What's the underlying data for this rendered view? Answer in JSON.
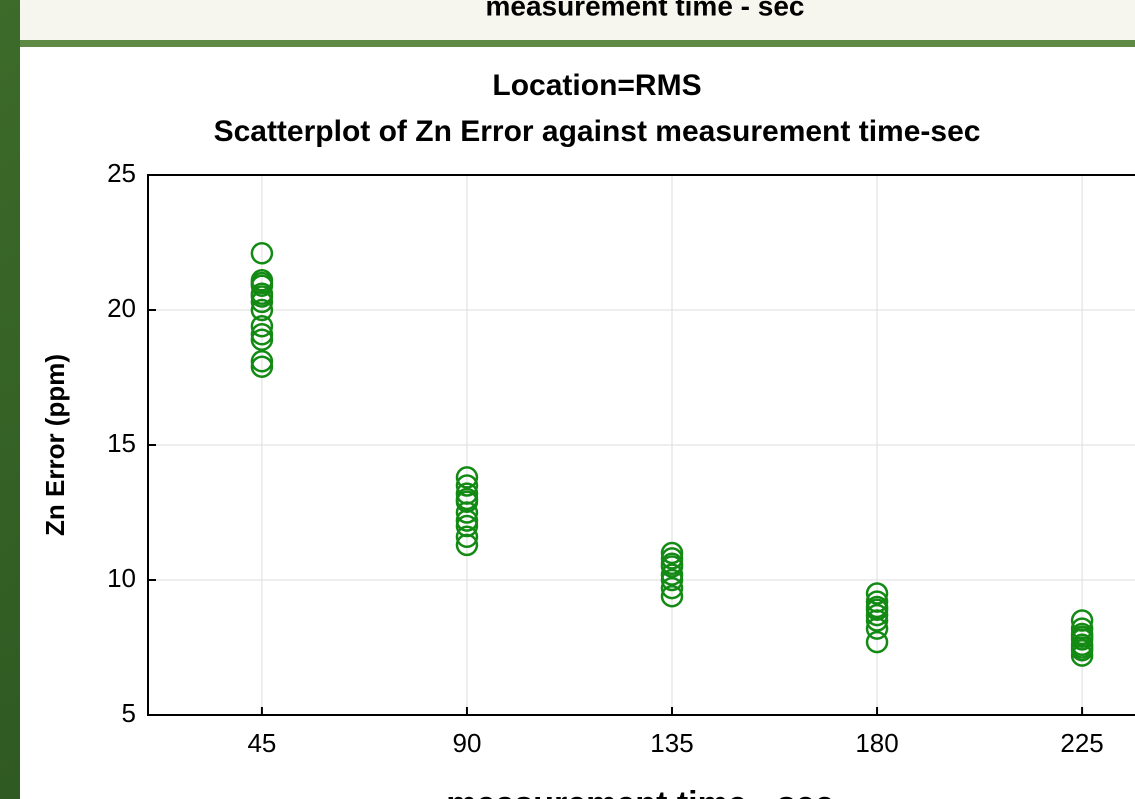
{
  "header": {
    "text": "measurement time - sec"
  },
  "chart_data": {
    "type": "scatter",
    "title": "Location=RMS",
    "subtitle": "Scatterplot of Zn Error against measurement time-sec",
    "x_label": "measurement time - sec",
    "y_label": "Zn Error (ppm)",
    "xlim": [
      20,
      250
    ],
    "xticks": [
      45,
      90,
      135,
      180,
      225
    ],
    "ylim": [
      5,
      25
    ],
    "yticks": [
      5,
      10,
      15,
      20,
      25
    ],
    "grid": true,
    "series": [
      {
        "color": "#138a13",
        "x": [
          45,
          45,
          45,
          45,
          45,
          45,
          45,
          45,
          45,
          45,
          45,
          45,
          45,
          90,
          90,
          90,
          90,
          90,
          90,
          90,
          90,
          90,
          90,
          135,
          135,
          135,
          135,
          135,
          135,
          135,
          135,
          180,
          180,
          180,
          180,
          180,
          180,
          180,
          180,
          225,
          225,
          225,
          225,
          225,
          225,
          225,
          225,
          225
        ],
        "values": [
          22.1,
          21.1,
          20.9,
          20.6,
          20.3,
          20.0,
          19.4,
          19.1,
          18.9,
          18.1,
          17.9,
          21.0,
          20.5,
          13.8,
          13.5,
          13.2,
          12.9,
          12.5,
          12.2,
          12.0,
          11.6,
          11.3,
          13.0,
          11.0,
          10.8,
          10.5,
          10.2,
          10.0,
          9.7,
          9.4,
          10.6,
          9.5,
          9.2,
          8.9,
          8.7,
          8.5,
          8.2,
          7.7,
          9.0,
          8.5,
          8.2,
          8.0,
          7.8,
          7.6,
          7.4,
          7.2,
          7.9,
          7.5
        ]
      }
    ]
  }
}
